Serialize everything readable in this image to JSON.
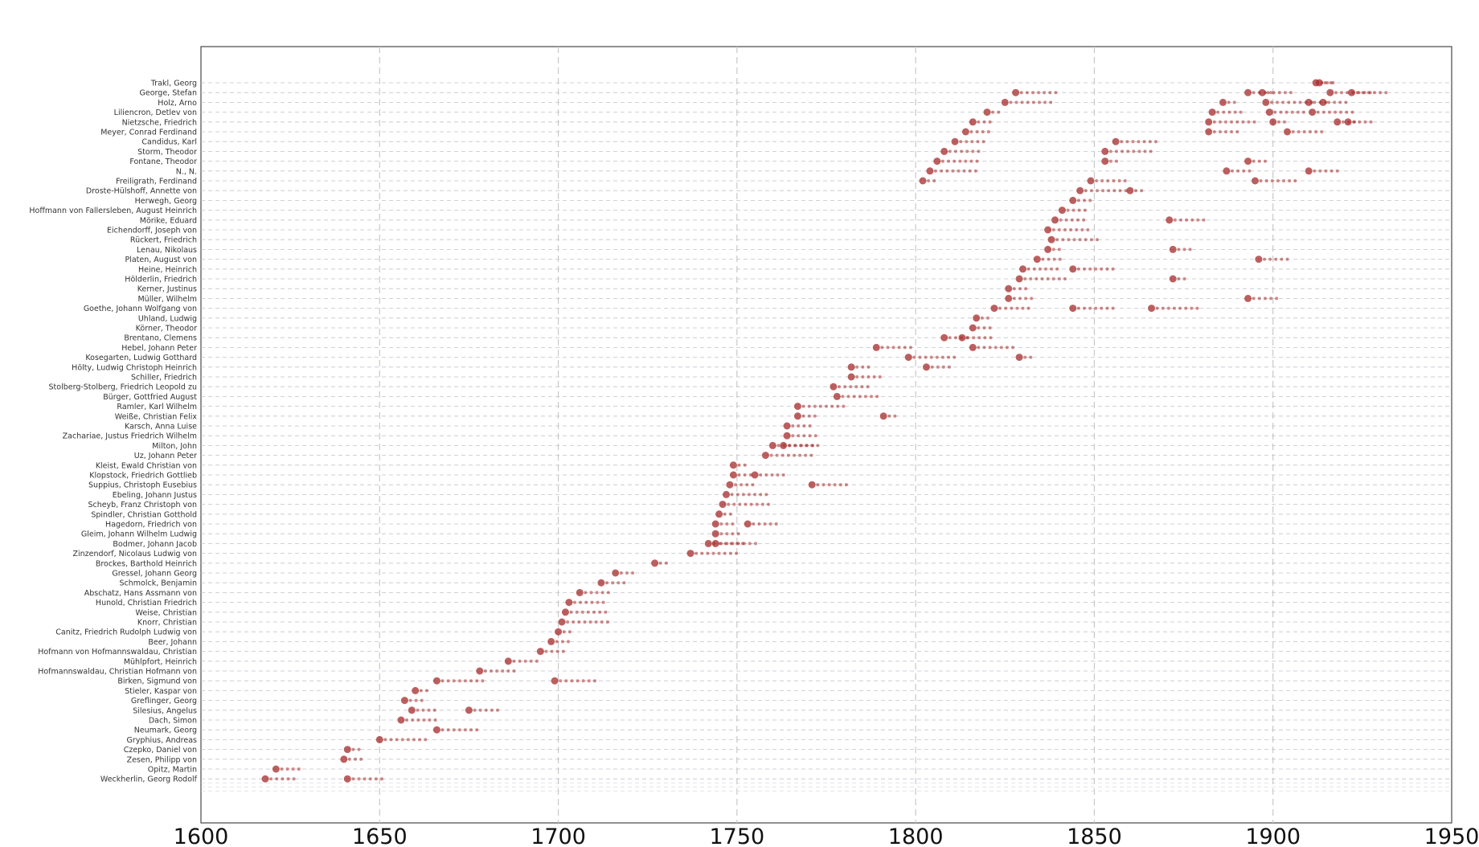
{
  "chart_data": {
    "type": "scatter",
    "title": "",
    "xlabel": "",
    "ylabel": "",
    "xlim": [
      1600,
      1950
    ],
    "x_ticks": [
      1600,
      1650,
      1700,
      1750,
      1800,
      1850,
      1900,
      1950
    ],
    "grid": {
      "x": "dashed",
      "y": "dashed"
    },
    "legend": "none",
    "colors": {
      "point": "#a52a2a",
      "grid": "#c8c8c8",
      "frame": "#555555"
    },
    "categories": [
      "Trakl, Georg",
      "George, Stefan",
      "Holz, Arno",
      "Liliencron, Detlev von",
      "Nietzsche, Friedrich",
      "Meyer, Conrad Ferdinand",
      "Candidus, Karl",
      "Storm, Theodor",
      "Fontane, Theodor",
      "N., N.",
      "Freiligrath, Ferdinand",
      "Droste-Hülshoff, Annette von",
      "Herwegh, Georg",
      "Hoffmann von Fallersleben, August Heinrich",
      "Mörike, Eduard",
      "Eichendorff, Joseph von",
      "Rückert, Friedrich",
      "Lenau, Nikolaus",
      "Platen, August von",
      "Heine, Heinrich",
      "Hölderlin, Friedrich",
      "Kerner, Justinus",
      "Müller, Wilhelm",
      "Goethe, Johann Wolfgang von",
      "Uhland, Ludwig",
      "Körner, Theodor",
      "Brentano, Clemens",
      "Hebel, Johann Peter",
      "Kosegarten, Ludwig Gotthard",
      "Hölty, Ludwig Christoph Heinrich",
      "Schiller, Friedrich",
      "Stolberg-Stolberg, Friedrich Leopold zu",
      "Bürger, Gottfried August",
      "Ramler, Karl Wilhelm",
      "Weiße, Christian Felix",
      "Karsch, Anna Luise",
      "Zachariae, Justus Friedrich Wilhelm",
      "Milton, John",
      "Uz, Johann Peter",
      "Kleist, Ewald Christian von",
      "Klopstock, Friedrich Gottlieb",
      "Suppius, Christoph Eusebius",
      "Ebeling, Johann Justus",
      "Scheyb, Franz Christoph von",
      "Spindler, Christian Gotthold",
      "Hagedorn, Friedrich von",
      "Gleim, Johann Wilhelm Ludwig",
      "Bodmer, Johann Jacob",
      "Zinzendorf, Nicolaus Ludwig von",
      "Brockes, Barthold Heinrich",
      "Gressel, Johann Georg",
      "Schmolck, Benjamin",
      "Abschatz, Hans Assmann von",
      "Hunold, Christian Friedrich",
      "Weise, Christian",
      "Knorr, Christian",
      "Canitz, Friedrich Rudolph Ludwig von",
      "Beer, Johann",
      "Hofmann von Hofmannswaldau, Christian",
      "Mühlpfort, Heinrich",
      "Hofmannswaldau, Christian Hofmann von",
      "Birken, Sigmund von",
      "Stieler, Kaspar von",
      "Greflinger, Georg",
      "Silesius, Angelus",
      "Dach, Simon",
      "Neumark, Georg",
      "Gryphius, Andreas",
      "Czepko, Daniel von",
      "Zesen, Philipp von",
      "Opitz, Martin",
      "Weckherlin, Georg Rodolf"
    ],
    "series": [
      {
        "points": [
          [
            1913,
            0
          ],
          [
            1912,
            0
          ],
          [
            1893,
            1
          ],
          [
            1897,
            1
          ],
          [
            1922,
            1
          ],
          [
            1916,
            1
          ],
          [
            1898,
            2
          ],
          [
            1886,
            2
          ],
          [
            1910,
            2
          ],
          [
            1914,
            2
          ],
          [
            1883,
            3
          ],
          [
            1899,
            3
          ],
          [
            1911,
            3
          ],
          [
            1882,
            4
          ],
          [
            1900,
            4
          ],
          [
            1918,
            4
          ],
          [
            1921,
            4
          ],
          [
            1882,
            5
          ],
          [
            1904,
            5
          ],
          [
            1856,
            6
          ],
          [
            1853,
            7
          ],
          [
            1853,
            8
          ],
          [
            1893,
            8
          ],
          [
            1887,
            9
          ],
          [
            1910,
            9
          ],
          [
            1849,
            10
          ],
          [
            1895,
            10
          ],
          [
            1846,
            11
          ],
          [
            1860,
            11
          ],
          [
            1844,
            12
          ],
          [
            1841,
            13
          ],
          [
            1839,
            14
          ],
          [
            1871,
            14
          ],
          [
            1837,
            15
          ],
          [
            1838,
            16
          ],
          [
            1837,
            17
          ],
          [
            1872,
            17
          ],
          [
            1834,
            18
          ],
          [
            1896,
            18
          ],
          [
            1830,
            19
          ],
          [
            1844,
            19
          ],
          [
            1829,
            20
          ],
          [
            1872,
            20
          ],
          [
            1826,
            21
          ],
          [
            1826,
            22
          ],
          [
            1893,
            22
          ],
          [
            1822,
            23
          ],
          [
            1844,
            23
          ],
          [
            1866,
            23
          ],
          [
            1817,
            24
          ],
          [
            1816,
            25
          ],
          [
            1808,
            26
          ],
          [
            1813,
            26
          ],
          [
            1789,
            27
          ],
          [
            1816,
            27
          ],
          [
            1798,
            28
          ],
          [
            1829,
            28
          ],
          [
            1782,
            29
          ],
          [
            1803,
            29
          ],
          [
            1782,
            30
          ],
          [
            1777,
            31
          ],
          [
            1778,
            32
          ],
          [
            1767,
            33
          ],
          [
            1791,
            34
          ],
          [
            1767,
            34
          ],
          [
            1764,
            35
          ],
          [
            1764,
            36
          ],
          [
            1763,
            37
          ],
          [
            1760,
            37
          ],
          [
            1758,
            38
          ],
          [
            1749,
            39
          ],
          [
            1749,
            40
          ],
          [
            1748,
            41
          ],
          [
            1755,
            40
          ],
          [
            1771,
            41
          ],
          [
            1747,
            42
          ],
          [
            1746,
            43
          ],
          [
            1745,
            44
          ],
          [
            1744,
            45
          ],
          [
            1744,
            46
          ],
          [
            1753,
            45
          ],
          [
            1742,
            47
          ],
          [
            1744,
            47
          ],
          [
            1737,
            48
          ],
          [
            1727,
            49
          ],
          [
            1716,
            50
          ],
          [
            1712,
            51
          ],
          [
            1706,
            52
          ],
          [
            1703,
            53
          ],
          [
            1702,
            54
          ],
          [
            1701,
            55
          ],
          [
            1700,
            56
          ],
          [
            1698,
            57
          ],
          [
            1695,
            58
          ],
          [
            1686,
            59
          ],
          [
            1678,
            60
          ],
          [
            1699,
            61
          ],
          [
            1666,
            61
          ],
          [
            1660,
            62
          ],
          [
            1657,
            63
          ],
          [
            1659,
            64
          ],
          [
            1675,
            64
          ],
          [
            1656,
            65
          ],
          [
            1666,
            66
          ],
          [
            1650,
            67
          ],
          [
            1641,
            68
          ],
          [
            1640,
            69
          ],
          [
            1621,
            70
          ],
          [
            1618,
            71
          ],
          [
            1641,
            71
          ],
          [
            1828,
            1
          ],
          [
            1825,
            2
          ],
          [
            1820,
            3
          ],
          [
            1816,
            4
          ],
          [
            1814,
            5
          ],
          [
            1811,
            6
          ],
          [
            1808,
            7
          ],
          [
            1806,
            8
          ],
          [
            1804,
            9
          ],
          [
            1802,
            10
          ]
        ]
      }
    ]
  }
}
